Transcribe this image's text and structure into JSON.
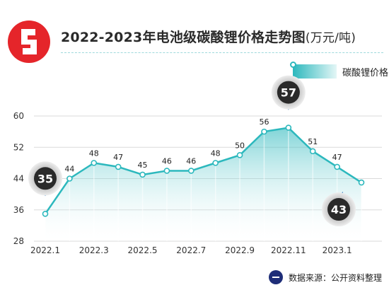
{
  "header": {
    "title": "2022-2023年电池级碳酸锂价格走势图",
    "unit": "(万元/吨)",
    "brand_color": "#e5252a"
  },
  "legend": {
    "label": "碳酸锂价格"
  },
  "source": {
    "label": "数据来源：公开资料整理",
    "icon": "info-badge-icon"
  },
  "colors": {
    "line": "#2cb8bd",
    "area_top": "#2cb8bd",
    "area_bottom": "#ffffff",
    "callout": "#2a2a2a",
    "grid": "#dadada"
  },
  "chart_data": {
    "type": "area",
    "x": [
      "2022.1",
      "2022.2",
      "2022.3",
      "2022.4",
      "2022.5",
      "2022.6",
      "2022.7",
      "2022.8",
      "2022.9",
      "2022.10",
      "2022.11",
      "2022.12",
      "2023.1",
      "2023.2"
    ],
    "series": [
      {
        "name": "碳酸锂价格",
        "values": [
          35,
          44,
          48,
          47,
          45,
          46,
          46,
          48,
          50,
          56,
          57,
          51,
          47,
          43
        ]
      }
    ],
    "point_labels": [
      "35",
      "44",
      "48",
      "47",
      "45",
      "46",
      "46",
      "48",
      "50",
      "56",
      "57",
      "51",
      "47",
      "43"
    ],
    "callouts": [
      0,
      10,
      13
    ],
    "x_tick_labels": [
      "2022.1",
      "2022.3",
      "2022.5",
      "2022.7",
      "2022.9",
      "2022.11",
      "2023.1"
    ],
    "x_tick_indices": [
      0,
      2,
      4,
      6,
      8,
      10,
      12
    ],
    "y_ticks": [
      "28",
      "36",
      "44",
      "52",
      "60"
    ],
    "ylim": [
      28,
      60
    ],
    "grid": "horizontal",
    "legend_position": "top-right",
    "title": "2022-2023年电池级碳酸锂价格走势图",
    "xlabel": "",
    "ylabel": ""
  }
}
